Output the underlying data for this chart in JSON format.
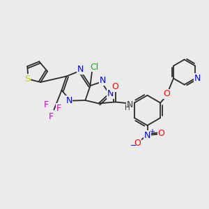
{
  "background_color": "#ebebeb",
  "bond_color": "#2a2a2a",
  "figsize": [
    3.0,
    3.0
  ],
  "dpi": 100,
  "colors": {
    "S": "#cccc00",
    "N": "#0000ee",
    "O": "#ff0000",
    "F": "#cc00cc",
    "Cl": "#00bb00",
    "bond": "#2a2a2a",
    "NH": "#3a3a3a"
  }
}
